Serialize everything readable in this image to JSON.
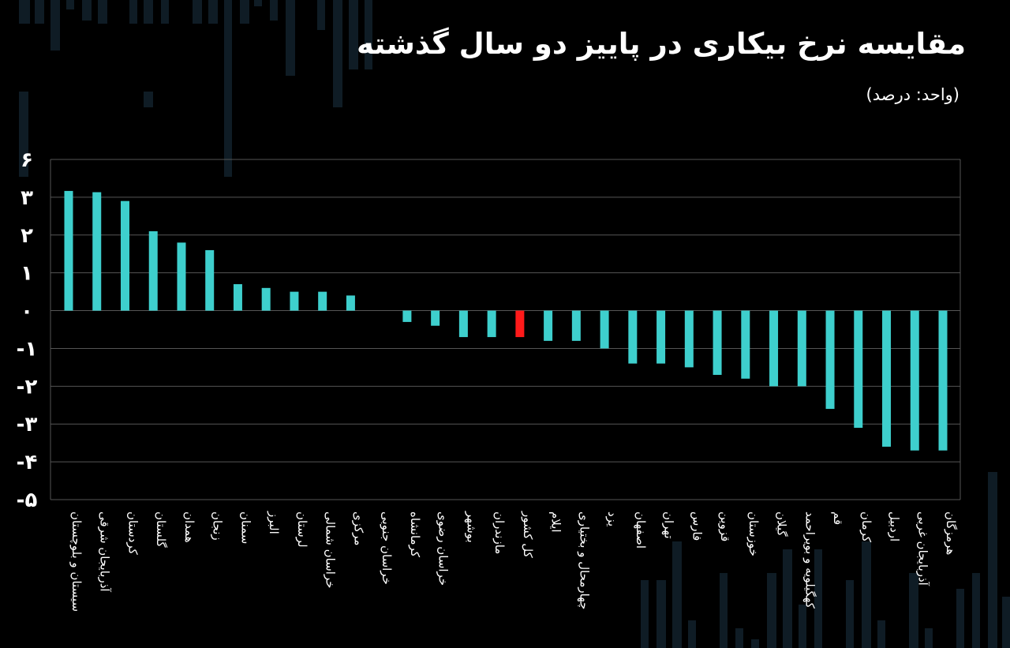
{
  "header": {
    "title": "مقایسه نرخ بیکاری در پاییز دو سال گذشته",
    "unit": "(واحد: درصد)"
  },
  "chart_data": {
    "type": "bar",
    "title": "مقایسه نرخ بیکاری در پاییز دو سال گذشته",
    "ylabel": "",
    "xlabel": "",
    "unit": "(واحد: درصد)",
    "ylim": [
      -5,
      6
    ],
    "y_tick_values": [
      6,
      3,
      2,
      1,
      0,
      -1,
      -2,
      -3,
      -4,
      -5
    ],
    "y_tick_labels": [
      "۶",
      "۳",
      "۲",
      "۱",
      "۰",
      "-۱",
      "-۲",
      "-۳",
      "-۴",
      "-۵"
    ],
    "grid": true,
    "categories": [
      "سیستان و بلوچستان",
      "آذربایجان شرقی",
      "کردستان",
      "گلستان",
      "همدان",
      "زنجان",
      "سمنان",
      "البرز",
      "لرستان",
      "خراسان شمالی",
      "مرکزی",
      "خراسان جنوبی",
      "کرمانشاه",
      "خراسان رضوی",
      "بوشهر",
      "مازندران",
      "کل کشور",
      "ایلام",
      "چهارمحال و بختیاری",
      "یزد",
      "اصفهان",
      "تهران",
      "فارس",
      "قزوین",
      "خوزستان",
      "گیلان",
      "کهگیلویه و بویراحمد",
      "قم",
      "کرمان",
      "اردبیل",
      "آذربایجان غربی",
      "هرمزگان"
    ],
    "values": [
      3.5,
      3.4,
      2.9,
      2.1,
      1.8,
      1.6,
      0.7,
      0.6,
      0.5,
      0.5,
      0.4,
      0.0,
      -0.3,
      -0.4,
      -0.7,
      -0.7,
      -0.7,
      -0.8,
      -0.8,
      -1.0,
      -1.4,
      -1.4,
      -1.5,
      -1.7,
      -1.8,
      -2.0,
      -2.0,
      -2.6,
      -3.1,
      -3.6,
      -3.7,
      -3.7
    ],
    "colors": {
      "bar": "#3ecfcd",
      "highlight": "#ff1a1a",
      "grid": "#555555",
      "axis_text": "#ffffff"
    },
    "highlight_category": "کل کشور"
  }
}
